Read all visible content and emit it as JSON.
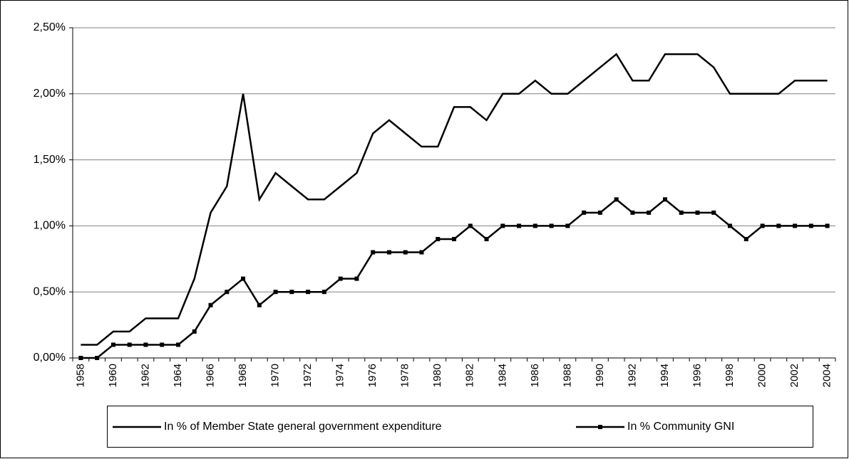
{
  "chart_data": {
    "type": "line",
    "categories": [
      "1958",
      null,
      "1960",
      null,
      "1962",
      null,
      "1964",
      null,
      "1966",
      null,
      "1968",
      null,
      "1970",
      null,
      "1972",
      null,
      "1974",
      null,
      "1976",
      null,
      "1978",
      null,
      "1980",
      null,
      "1982",
      null,
      "1984",
      null,
      "1986",
      null,
      "1988",
      null,
      "1990",
      null,
      "1992",
      null,
      "1994",
      null,
      "1996",
      null,
      "1998",
      null,
      "2000",
      null,
      "2002",
      null,
      "2004"
    ],
    "series": [
      {
        "name": "In % of Member State general government expenditure",
        "color": "#000000",
        "marker": false,
        "values": [
          0.1,
          0.1,
          0.2,
          0.2,
          0.3,
          0.3,
          0.3,
          0.6,
          1.1,
          1.3,
          2.0,
          1.2,
          1.4,
          1.3,
          1.2,
          1.2,
          1.3,
          1.4,
          1.7,
          1.8,
          1.7,
          1.6,
          1.6,
          1.9,
          1.9,
          1.8,
          2.0,
          2.0,
          2.1,
          2.0,
          2.0,
          2.1,
          2.2,
          2.3,
          2.1,
          2.1,
          2.3,
          2.3,
          2.3,
          2.2,
          2.0,
          2.0,
          2.0,
          2.0,
          2.1,
          2.1,
          2.1
        ]
      },
      {
        "name": "In % Community GNI",
        "color": "#000000",
        "marker": true,
        "values": [
          0.0,
          0.0,
          0.1,
          0.1,
          0.1,
          0.1,
          0.1,
          0.2,
          0.4,
          0.5,
          0.6,
          0.4,
          0.5,
          0.5,
          0.5,
          0.5,
          0.6,
          0.6,
          0.8,
          0.8,
          0.8,
          0.8,
          0.9,
          0.9,
          1.0,
          0.9,
          1.0,
          1.0,
          1.0,
          1.0,
          1.0,
          1.1,
          1.1,
          1.2,
          1.1,
          1.1,
          1.2,
          1.1,
          1.1,
          1.1,
          1.0,
          0.9,
          1.0,
          1.0,
          1.0,
          1.0,
          1.0
        ]
      }
    ],
    "ylim": [
      0,
      2.5
    ],
    "yticks": [
      {
        "value": 0,
        "label": "0,00%"
      },
      {
        "value": 0.5,
        "label": "0,50%"
      },
      {
        "value": 1.0,
        "label": "1,00%"
      },
      {
        "value": 1.5,
        "label": "1,50%"
      },
      {
        "value": 2.0,
        "label": "2,00%"
      },
      {
        "value": 2.5,
        "label": "2,50%"
      }
    ],
    "grid": true,
    "legend": "bottom"
  }
}
